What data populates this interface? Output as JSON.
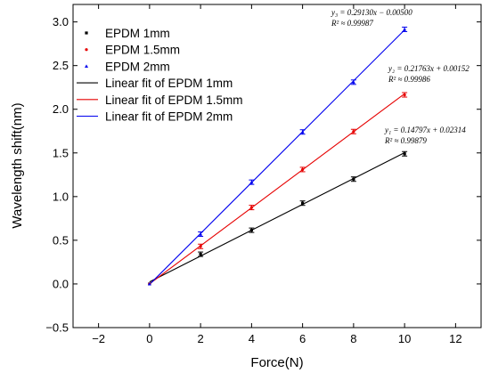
{
  "chart_data": {
    "type": "scatter",
    "xlabel": "Force(N)",
    "ylabel": "Wavelength shift(nm)",
    "xlim": [
      -3,
      13
    ],
    "ylim": [
      -0.5,
      3.2
    ],
    "xticks": [
      -2,
      0,
      2,
      4,
      6,
      8,
      10,
      12
    ],
    "xtick_labels": [
      "−2",
      "0",
      "2",
      "4",
      "6",
      "8",
      "10",
      "12"
    ],
    "yticks": [
      -0.5,
      0.0,
      0.5,
      1.0,
      1.5,
      2.0,
      2.5,
      3.0
    ],
    "ytick_labels": [
      "−0.5",
      "0.0",
      "0.5",
      "1.0",
      "1.5",
      "2.0",
      "2.5",
      "3.0"
    ],
    "grid": false,
    "legend_position": "top-left",
    "x": [
      0,
      2,
      4,
      6,
      8,
      10
    ],
    "series": [
      {
        "name": "EPDM 1mm",
        "marker": "square",
        "color": "#000000",
        "values": [
          0.0,
          0.34,
          0.615,
          0.925,
          1.2,
          1.49
        ],
        "fit_name": "Linear fit of EPDM 1mm",
        "fit_slope": 0.14797,
        "fit_intercept": 0.02314,
        "equation": "y₁ = 0.14797x + 0.02314",
        "r2": "R² ≈ 0.99879"
      },
      {
        "name": "EPDM 1.5mm",
        "marker": "circle",
        "color": "#e60000",
        "values": [
          0.0,
          0.43,
          0.875,
          1.31,
          1.745,
          2.165
        ],
        "fit_name": "Linear fit of EPDM 1.5mm",
        "fit_slope": 0.21763,
        "fit_intercept": 0.00152,
        "equation": "y₂ = 0.21763x + 0.00152",
        "r2": "R² ≈ 0.99986"
      },
      {
        "name": "EPDM 2mm",
        "marker": "triangle",
        "color": "#0000ee",
        "values": [
          0.0,
          0.57,
          1.165,
          1.74,
          2.31,
          2.915
        ],
        "fit_name": "Linear fit of EPDM 2mm",
        "fit_slope": 0.2913,
        "fit_intercept": -0.005,
        "equation": "y₃ = 0.29130x − 0.00500",
        "r2": "R² ≈ 0.99987"
      }
    ]
  }
}
